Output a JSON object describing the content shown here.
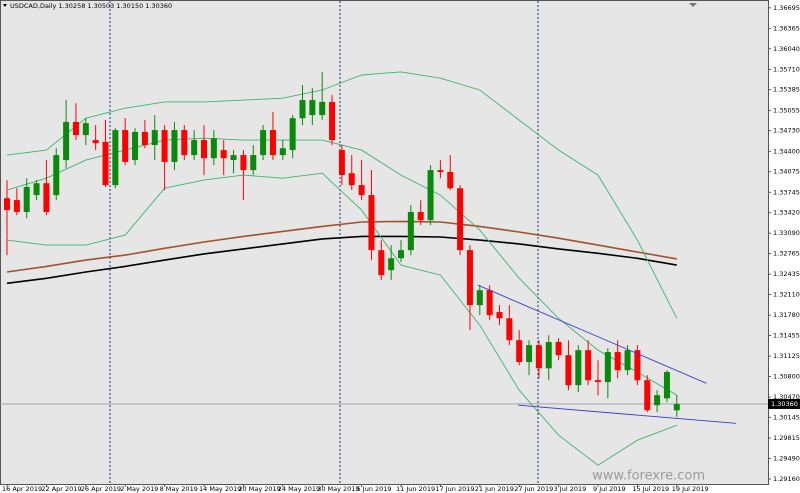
{
  "chart_data": {
    "type": "candlestick",
    "title": "USDCAD,Daily 1.30258 1.30503 1.30150 1.30360",
    "watermark": "www.forexre.com",
    "up_color": "#0a8a0a",
    "down_color": "#ff0000",
    "categories": [
      "16 Apr 2019",
      null,
      null,
      null,
      "22 Apr 2019",
      null,
      null,
      null,
      "26 Apr 2019",
      null,
      null,
      null,
      "2 May 2019",
      null,
      null,
      null,
      "8 May 2019",
      null,
      null,
      null,
      "14 May 2019",
      null,
      null,
      null,
      "20 May 2019",
      null,
      null,
      null,
      "24 May 2019",
      null,
      null,
      null,
      "30 May 2019",
      null,
      null,
      null,
      "5 Jun 2019",
      null,
      null,
      null,
      "11 Jun 2019",
      null,
      null,
      null,
      "17 Jun 2019",
      null,
      null,
      null,
      "21 Jun 2019",
      null,
      null,
      null,
      "27 Jun 2019",
      null,
      null,
      null,
      "3 Jul 2019",
      null,
      null,
      null,
      "9 Jul 2019",
      null,
      null,
      null,
      "15 Jul 2019",
      null,
      null,
      null,
      "19 Jul 2019"
    ],
    "open": [
      1.3365,
      1.3362,
      1.3343,
      1.337,
      1.3389,
      1.337,
      1.3426,
      1.3487,
      1.3466,
      1.3458,
      1.3455,
      1.3386,
      1.3474,
      1.3426,
      1.3471,
      1.345,
      1.3474,
      1.3423,
      1.3474,
      1.3434,
      1.3458,
      1.3429,
      1.3442,
      1.3426,
      1.3434,
      1.341,
      1.3434,
      1.3474,
      1.3434,
      1.3442,
      1.3493,
      1.3498,
      1.3498,
      1.3519,
      1.3442,
      1.3405,
      1.3386,
      1.337,
      1.3282,
      1.325,
      1.3269,
      1.3282,
      1.3343,
      1.333,
      1.341,
      1.3407,
      1.3381,
      1.3282,
      1.3194,
      1.3218,
      1.3183,
      1.3173,
      1.3138,
      1.3103,
      1.313,
      1.3093,
      1.3135,
      1.3114,
      1.3066,
      1.3122,
      1.3074,
      1.3071,
      1.3119,
      1.309,
      1.3122,
      1.3074,
      1.3034,
      1.3045,
      1.30258
    ],
    "high": [
      1.3394,
      1.3381,
      1.3397,
      1.3394,
      1.3426,
      1.3445,
      1.3522,
      1.3517,
      1.3493,
      1.3482,
      1.349,
      1.3477,
      1.3493,
      1.3477,
      1.349,
      1.3498,
      1.3482,
      1.3487,
      1.3482,
      1.3474,
      1.3482,
      1.3474,
      1.3458,
      1.3442,
      1.3442,
      1.345,
      1.3482,
      1.3503,
      1.3458,
      1.3498,
      1.3546,
      1.3541,
      1.3567,
      1.353,
      1.345,
      1.3434,
      1.3426,
      1.341,
      1.3298,
      1.329,
      1.3298,
      1.3354,
      1.3362,
      1.3418,
      1.3426,
      1.3434,
      1.3386,
      1.329,
      1.3226,
      1.3226,
      1.3194,
      1.3194,
      1.3154,
      1.3138,
      1.3138,
      1.3146,
      1.3141,
      1.3138,
      1.313,
      1.3138,
      1.3106,
      1.3125,
      1.3138,
      1.313,
      1.313,
      1.3082,
      1.3058,
      1.309,
      1.30503
    ],
    "low": [
      1.3274,
      1.3338,
      1.3333,
      1.3362,
      1.3338,
      1.3362,
      1.3413,
      1.3458,
      1.345,
      1.3442,
      1.3383,
      1.3381,
      1.3418,
      1.3418,
      1.3445,
      1.3426,
      1.3378,
      1.341,
      1.3426,
      1.3426,
      1.3402,
      1.3418,
      1.3402,
      1.3405,
      1.3362,
      1.3402,
      1.3426,
      1.3426,
      1.3426,
      1.3429,
      1.3482,
      1.3482,
      1.349,
      1.345,
      1.3386,
      1.3378,
      1.3362,
      1.3266,
      1.3234,
      1.3234,
      1.3263,
      1.3274,
      1.3322,
      1.3322,
      1.3397,
      1.3378,
      1.3274,
      1.3154,
      1.3178,
      1.317,
      1.3162,
      1.313,
      1.3098,
      1.3082,
      1.3077,
      1.3074,
      1.3106,
      1.3058,
      1.3055,
      1.3066,
      1.305,
      1.3045,
      1.3077,
      1.3082,
      1.3066,
      1.3023,
      1.3023,
      1.3039,
      1.3015
    ],
    "close": [
      1.3346,
      1.3343,
      1.3383,
      1.3389,
      1.3343,
      1.3434,
      1.3487,
      1.3466,
      1.3485,
      1.3453,
      1.3386,
      1.3474,
      1.3423,
      1.3471,
      1.345,
      1.3474,
      1.3423,
      1.3474,
      1.3434,
      1.3458,
      1.3429,
      1.3461,
      1.3429,
      1.3434,
      1.341,
      1.3434,
      1.3474,
      1.3434,
      1.3445,
      1.3493,
      1.3522,
      1.3522,
      1.3519,
      1.3458,
      1.3402,
      1.3386,
      1.337,
      1.3282,
      1.3242,
      1.3269,
      1.3282,
      1.3343,
      1.333,
      1.341,
      1.3407,
      1.3381,
      1.3282,
      1.3194,
      1.3218,
      1.3178,
      1.3173,
      1.3138,
      1.3103,
      1.313,
      1.3093,
      1.3135,
      1.3114,
      1.3066,
      1.3122,
      1.3074,
      1.3071,
      1.3119,
      1.309,
      1.3122,
      1.3074,
      1.3026,
      1.305,
      1.3087,
      1.3036
    ],
    "overlays": [
      {
        "color": "#a0522d",
        "x": [
          0,
          4,
          8,
          12,
          16,
          20,
          24,
          28,
          32,
          36,
          40,
          44,
          48,
          52,
          56,
          60,
          64,
          68
        ],
        "values": [
          1.3247,
          1.3256,
          1.3266,
          1.3274,
          1.3285,
          1.3295,
          1.3304,
          1.3312,
          1.332,
          1.3327,
          1.3328,
          1.3327,
          1.332,
          1.3311,
          1.3301,
          1.329,
          1.3279,
          1.3268
        ]
      },
      {
        "color": "#000000",
        "x": [
          0,
          4,
          8,
          12,
          16,
          20,
          24,
          28,
          32,
          36,
          40,
          44,
          48,
          52,
          56,
          60,
          64,
          68
        ],
        "values": [
          1.3229,
          1.3237,
          1.3247,
          1.3256,
          1.3266,
          1.3276,
          1.3284,
          1.3292,
          1.33,
          1.3304,
          1.3304,
          1.3303,
          1.3298,
          1.3292,
          1.3284,
          1.3277,
          1.3269,
          1.3258
        ]
      },
      {
        "color": "#3cb371",
        "x": [
          0,
          4,
          8,
          12,
          16,
          20,
          24,
          28,
          32,
          36,
          40,
          44,
          48,
          52,
          56,
          60,
          64,
          68
        ],
        "values": [
          1.3434,
          1.3442,
          1.3493,
          1.3509,
          1.3519,
          1.3519,
          1.3522,
          1.3525,
          1.3538,
          1.3562,
          1.3567,
          1.3557,
          1.3538,
          1.349,
          1.3442,
          1.3402,
          1.3298,
          1.3173
        ]
      },
      {
        "color": "#3cb371",
        "x": [
          0,
          4,
          8,
          12,
          16,
          20,
          24,
          28,
          32,
          36,
          40,
          44,
          48,
          52,
          56,
          60,
          64,
          68
        ],
        "values": [
          1.3378,
          1.3397,
          1.3426,
          1.3442,
          1.3458,
          1.3461,
          1.3458,
          1.3458,
          1.3458,
          1.3442,
          1.3402,
          1.337,
          1.3314,
          1.3237,
          1.3173,
          1.3122,
          1.3087,
          1.305
        ]
      },
      {
        "color": "#3cb371",
        "x": [
          0,
          4,
          8,
          12,
          16,
          20,
          24,
          28,
          32,
          36,
          40,
          44,
          48,
          52,
          56,
          60,
          64,
          68
        ],
        "values": [
          1.3298,
          1.329,
          1.329,
          1.3306,
          1.3381,
          1.3394,
          1.3402,
          1.3397,
          1.3405,
          1.3346,
          1.3258,
          1.3242,
          1.3162,
          1.3058,
          1.2986,
          1.2938,
          1.2978,
          1.3002
        ]
      },
      {
        "color": "#3a3ad0",
        "x": [
          47.8,
          71
        ],
        "values": [
          1.3226,
          1.3069
        ]
      },
      {
        "color": "#3a3ad0",
        "x": [
          51.9,
          74
        ],
        "values": [
          1.3034,
          1.3005
        ]
      }
    ],
    "current_price": {
      "value": 1.3036,
      "label": "1.30360"
    },
    "ylim": [
      1.2908,
      1.3682
    ],
    "yticks": [
      1.36695,
      1.36365,
      {
        "value": 1.3604,
        "label": "1.36040"
      },
      {
        "value": 1.3571,
        "label": "1.35710"
      },
      1.35385,
      1.35055,
      {
        "value": 1.3473,
        "label": "1.34730"
      },
      {
        "value": 1.344,
        "label": "1.34400"
      },
      1.34075,
      1.33745,
      {
        "value": 1.3342,
        "label": "1.33420"
      },
      {
        "value": 1.3309,
        "label": "1.33090"
      },
      1.32765,
      1.32435,
      {
        "value": 1.3211,
        "label": "1.32110"
      },
      {
        "value": 1.3178,
        "label": "1.31780"
      },
      1.31455,
      1.31125,
      {
        "value": 1.308,
        "label": "1.30800"
      },
      {
        "value": 1.3047,
        "label": "1.30470"
      },
      1.30145,
      1.29815,
      {
        "value": 1.2949,
        "label": "1.29490"
      },
      {
        "value": 1.2916,
        "label": "1.29160"
      }
    ]
  }
}
